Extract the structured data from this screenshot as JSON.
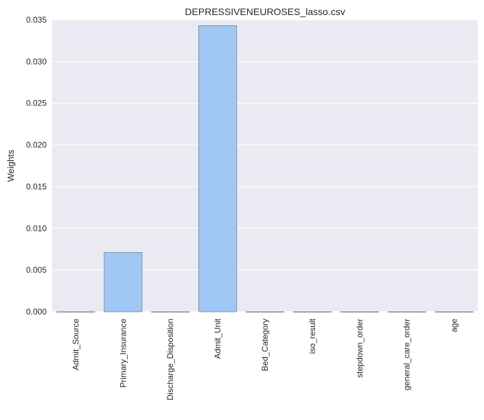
{
  "chart_data": {
    "type": "bar",
    "title": "DEPRESSIVENEUROSES_lasso.csv",
    "xlabel": "",
    "ylabel": "Weights",
    "categories": [
      "Admit_Source",
      "Primary_Insurance",
      "Discharge_Disposition",
      "Admit_Unit",
      "Bed_Category",
      "iso_result",
      "stepdown_order",
      "general_care_order",
      "age"
    ],
    "values": [
      0.0,
      0.0071,
      0.0,
      0.0343,
      0.0,
      0.0,
      0.0,
      0.0,
      0.0
    ],
    "ylim": [
      0,
      0.035
    ],
    "yticks": [
      "0.000",
      "0.005",
      "0.010",
      "0.015",
      "0.020",
      "0.025",
      "0.030",
      "0.035"
    ],
    "grid": true,
    "legend": "none",
    "colors": {
      "bar_fill": "#a1c8f4",
      "bar_edge": "#7f8fa6",
      "plot_bg": "#eaeaf2",
      "grid": "#ffffff"
    }
  }
}
